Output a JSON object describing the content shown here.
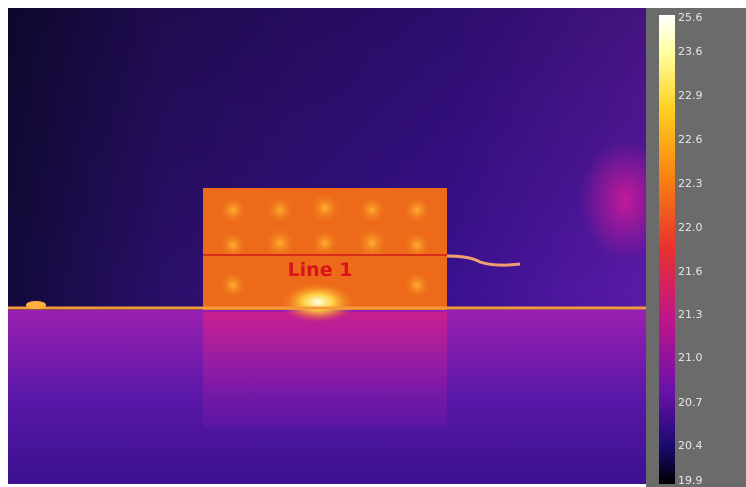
{
  "image": {
    "annotation": "Line 1"
  },
  "scale": {
    "labels": [
      "25.6",
      "23.6",
      "22.9",
      "22.6",
      "22.3",
      "22.0",
      "21.6",
      "21.3",
      "21.0",
      "20.7",
      "20.4",
      "19.9"
    ]
  }
}
